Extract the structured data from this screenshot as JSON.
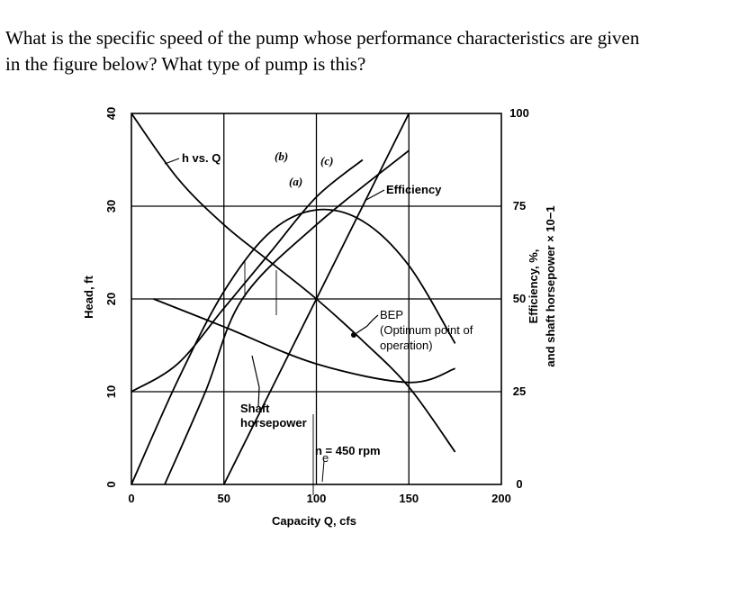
{
  "question": {
    "line1": "What is the specific speed of the pump whose performance characteristics are given",
    "line2": "in the figure below? What type of pump is this?"
  },
  "chart_data": {
    "type": "line",
    "xlabel": "Capacity Q, cfs",
    "ylabel_left": "Head, ft",
    "ylabel_right_1": "Efficiency, %,",
    "ylabel_right_2": "and shaft horsepower × 10−1",
    "xlim": [
      0,
      200
    ],
    "ylim_left": [
      0,
      40
    ],
    "ylim_right": [
      0,
      100
    ],
    "grid": true,
    "x_ticks": [
      "0",
      "50",
      "100",
      "150",
      "200"
    ],
    "y_left_ticks": [
      "0",
      "10",
      "20",
      "30",
      "40"
    ],
    "y_right_ticks": [
      "0",
      "25",
      "50",
      "75",
      "100"
    ],
    "series": [
      {
        "name": "h vs. Q",
        "x": [
          0,
          25,
          50,
          75,
          100,
          125,
          150,
          175
        ],
        "y": [
          40,
          33,
          28,
          24,
          20,
          15.5,
          10.5,
          3.5
        ]
      },
      {
        "name": "Efficiency",
        "x": [
          0,
          25,
          50,
          75,
          100,
          125,
          150,
          175
        ],
        "y": [
          0,
          28,
          52,
          68,
          74,
          71,
          59,
          38
        ]
      },
      {
        "name": "(a)",
        "x": [
          12,
          50,
          100,
          150,
          175
        ],
        "y": [
          20,
          17,
          13,
          11,
          12.5
        ]
      },
      {
        "name": "(b)",
        "x": [
          0,
          25,
          50,
          75,
          100,
          125
        ],
        "y": [
          10,
          13,
          19,
          25,
          31,
          35
        ]
      },
      {
        "name": "(c)",
        "x": [
          18,
          40,
          60,
          100,
          150
        ],
        "y": [
          0,
          10,
          20,
          28,
          36
        ]
      },
      {
        "name": "Shaft horsepower",
        "x": [
          50,
          75,
          100,
          125,
          150
        ],
        "y": [
          0,
          10,
          20,
          30,
          40
        ]
      }
    ],
    "annotations": {
      "bep_line1": "BEP",
      "bep_line2": "(Optimum point of",
      "bep_line3": "operation)",
      "shaft_line1": "Shaft",
      "shaft_line2": "horsepower",
      "speed": "n  = 450 rpm",
      "speed_sub": "e",
      "efficiency": "Efficiency",
      "hq": "h vs. Q",
      "a": "(a)",
      "b": "(b)",
      "c": "(c)"
    }
  }
}
